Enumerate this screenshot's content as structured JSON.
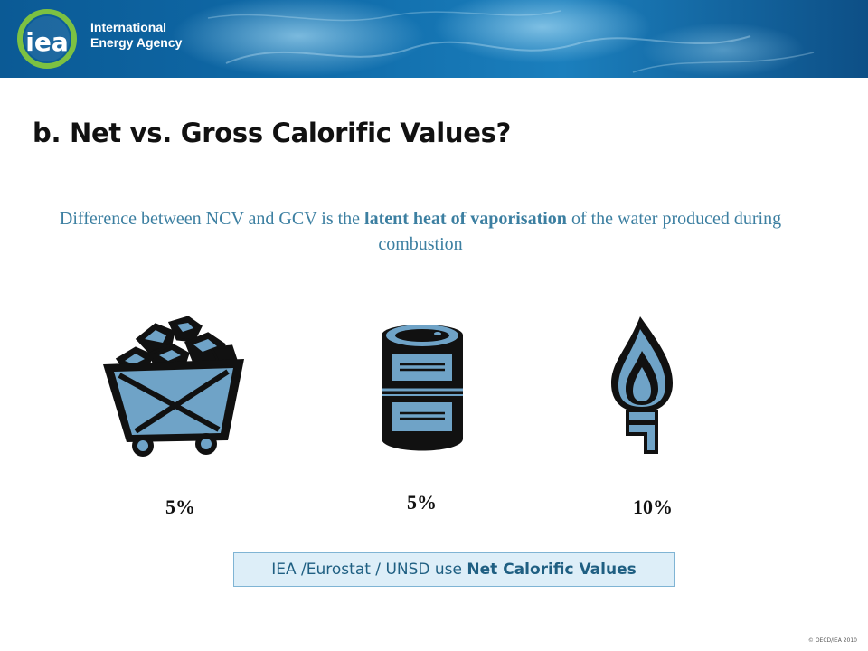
{
  "header": {
    "logo_mark": "iea",
    "logo_line1": "International",
    "logo_line2": "Energy Agency"
  },
  "slide": {
    "title": "b. Net vs. Gross Calorific Values?",
    "subtitle_part1": "Difference between NCV and GCV is the ",
    "subtitle_emphasis": "latent heat of vaporisation",
    "subtitle_part2": " of the water produced during combustion"
  },
  "fuels": [
    {
      "icon": "coal-cart-icon",
      "percent": "5%"
    },
    {
      "icon": "oil-barrel-icon",
      "percent": "5%"
    },
    {
      "icon": "gas-flame-icon",
      "percent": "10%"
    }
  ],
  "note": {
    "prefix": "IEA /Eurostat / UNSD use ",
    "emphasis": "Net Calorific Values"
  },
  "footer": {
    "copyright": "© OECD/IEA 2010"
  },
  "colors": {
    "banner_dark": "#0a4f86",
    "banner_light": "#4ea3d4",
    "subtitle_text": "#3c7fa1",
    "icon_fill": "#6fa3c7",
    "note_background": "#ddeef8",
    "note_border": "#7fb4d4"
  }
}
